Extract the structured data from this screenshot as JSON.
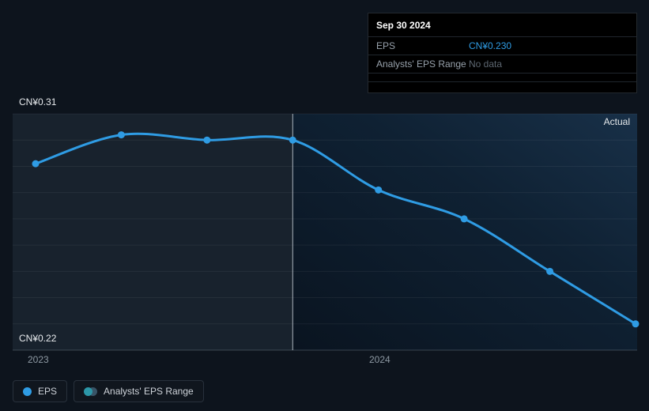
{
  "colors": {
    "eps_line": "#2f9ce4",
    "value_blue": "#2f9ce4",
    "range_teal": "#2c97a8",
    "background": "#0d141d",
    "panel_left": "#18222d",
    "tooltip_bg": "#000000"
  },
  "tooltip": {
    "title": "Sep 30 2024",
    "rows": [
      {
        "label": "EPS",
        "value": "CN¥0.230"
      },
      {
        "label": "Analysts' EPS Range",
        "value": "No data"
      }
    ]
  },
  "labels": {
    "y_top": "CN¥0.31",
    "y_bottom": "CN¥0.22",
    "actual": "Actual"
  },
  "legend": {
    "items": [
      {
        "label": "EPS"
      },
      {
        "label": "Analysts' EPS Range"
      }
    ]
  },
  "chart_data": {
    "type": "line",
    "x": [
      "2022-12-31",
      "2023-03-31",
      "2023-06-30",
      "2023-09-30",
      "2023-12-31",
      "2024-03-31",
      "2024-06-30",
      "2024-09-30"
    ],
    "series": [
      {
        "name": "EPS",
        "values": [
          0.291,
          0.302,
          0.3,
          0.3,
          0.281,
          0.27,
          0.25,
          0.23
        ]
      }
    ],
    "currency": "CN¥",
    "ylim": [
      0.22,
      0.31
    ],
    "ytick_step": 0.01,
    "y_top_label": "CN¥0.31",
    "y_bottom_label": "CN¥0.22",
    "xtick_labels": [
      "2023",
      "2024"
    ],
    "xtick_indices": [
      0,
      4
    ],
    "divider_index": 3,
    "annotation": "Actual",
    "grid": true,
    "legend_entries": [
      "EPS",
      "Analysts' EPS Range"
    ],
    "legend_position": "bottom-left"
  }
}
